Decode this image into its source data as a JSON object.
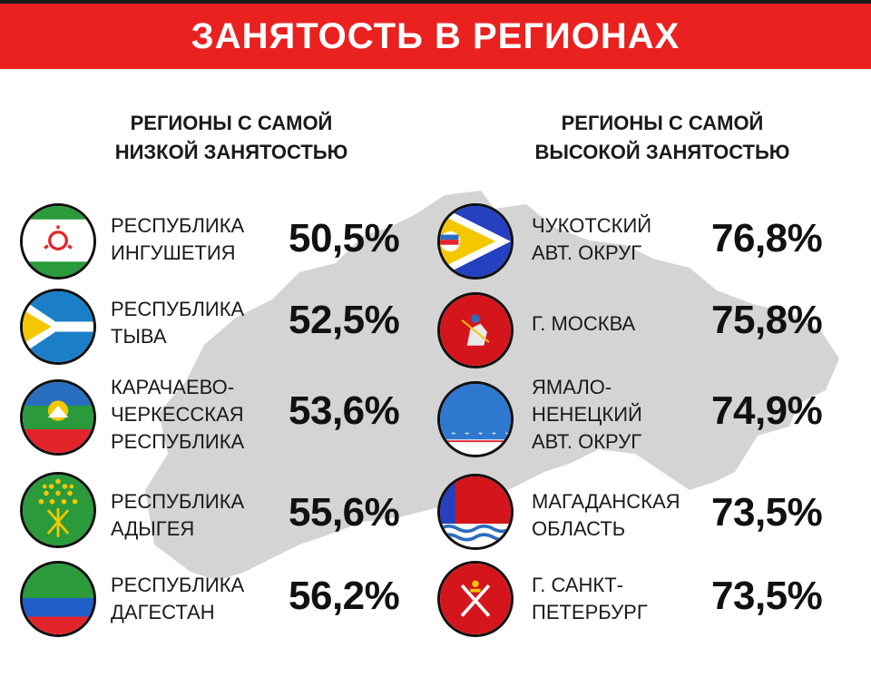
{
  "header": {
    "title": "ЗАНЯТОСТЬ В РЕГИОНАХ"
  },
  "colors": {
    "accent": "#e9211f",
    "map": "#d4d4d4"
  },
  "low": {
    "heading": [
      "РЕГИОНЫ С САМОЙ",
      "НИЗКОЙ ЗАНЯТОСТЬЮ"
    ],
    "items": [
      {
        "name": [
          "РЕСПУБЛИКА",
          "ИНГУШЕТИЯ"
        ],
        "value": "50,5%",
        "flag": "ingushetia-flag-icon"
      },
      {
        "name": [
          "РЕСПУБЛИКА",
          "ТЫВА"
        ],
        "value": "52,5%",
        "flag": "tuva-flag-icon"
      },
      {
        "name": [
          "КАРАЧАЕВО-",
          "ЧЕРКЕССКАЯ",
          "РЕСПУБЛИКА"
        ],
        "value": "53,6%",
        "flag": "karachay-cherkessia-flag-icon"
      },
      {
        "name": [
          "РЕСПУБЛИКА",
          "АДЫГЕЯ"
        ],
        "value": "55,6%",
        "flag": "adygea-flag-icon"
      },
      {
        "name": [
          "РЕСПУБЛИКА",
          "ДАГЕСТАН"
        ],
        "value": "56,2%",
        "flag": "dagestan-flag-icon"
      }
    ]
  },
  "high": {
    "heading": [
      "РЕГИОНЫ С САМОЙ",
      "ВЫСОКОЙ ЗАНЯТОСТЬЮ"
    ],
    "items": [
      {
        "name": [
          "ЧУКОТСКИЙ",
          "АВТ. ОКРУГ"
        ],
        "value": "76,8%",
        "flag": "chukotka-flag-icon"
      },
      {
        "name": [
          "Г. МОСКВА"
        ],
        "value": "75,8%",
        "flag": "moscow-flag-icon"
      },
      {
        "name": [
          "ЯМАЛО-",
          "НЕНЕЦКИЙ",
          "АВТ. ОКРУГ"
        ],
        "value": "74,9%",
        "flag": "yamalo-nenets-flag-icon"
      },
      {
        "name": [
          "МАГАДАНСКАЯ",
          "ОБЛАСТЬ"
        ],
        "value": "73,5%",
        "flag": "magadan-flag-icon"
      },
      {
        "name": [
          "Г. САНКТ-",
          "ПЕТЕРБУРГ"
        ],
        "value": "73,5%",
        "flag": "saint-petersburg-flag-icon"
      }
    ]
  }
}
